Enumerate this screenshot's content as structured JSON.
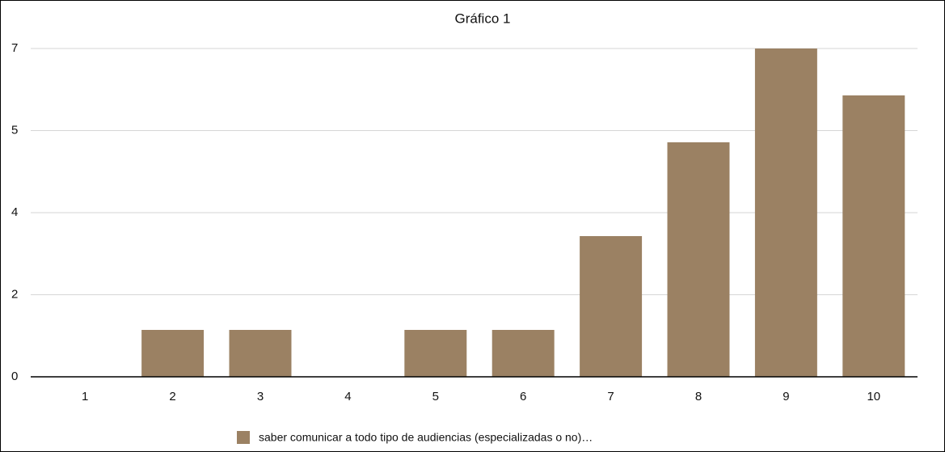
{
  "chart_data": {
    "type": "bar",
    "title": "Gráfico 1",
    "categories": [
      "1",
      "2",
      "3",
      "4",
      "5",
      "6",
      "7",
      "8",
      "9",
      "10"
    ],
    "series": [
      {
        "name": "saber comunicar a todo tipo de audiencias (especializadas o no)…",
        "color": "#9b8163",
        "values": [
          0,
          1,
          1,
          0,
          1,
          1,
          3,
          5,
          7,
          6
        ]
      }
    ],
    "ylim": [
      0,
      7
    ],
    "yticks": [
      0,
      {
        "value": 1.75,
        "label": "2"
      },
      {
        "value": 3.5,
        "label": "4"
      },
      {
        "value": 5.25,
        "label": "5"
      },
      7
    ],
    "grid": true,
    "legend": "bottom"
  }
}
